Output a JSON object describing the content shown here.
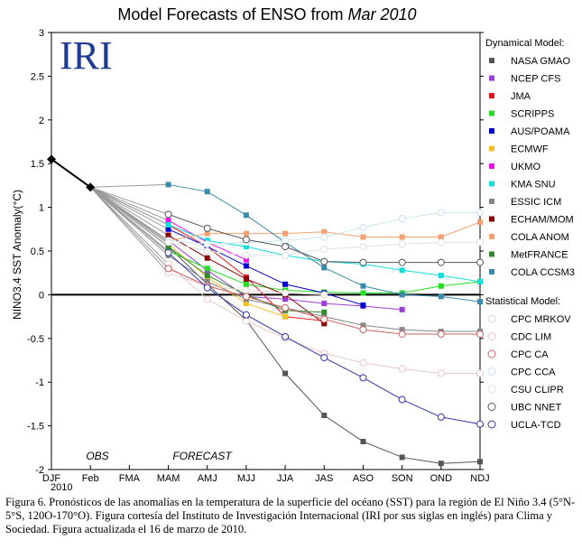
{
  "chart_data": {
    "type": "line",
    "title_prefix": "Model Forecasts of ENSO from",
    "title_month": "Mar 2010",
    "logo": "IRI",
    "ylabel": "NINO3.4 SST Anomaly(°C)",
    "ylim": [
      -2,
      3
    ],
    "yticks": [
      "3",
      "2.5",
      "2",
      "1.5",
      "1",
      "0.5",
      "0",
      "-0.5",
      "-1",
      "-1.5",
      "-2"
    ],
    "categories": [
      "DJF",
      "Feb",
      "FMA",
      "MAM",
      "AMJ",
      "MJJ",
      "JJA",
      "JAS",
      "ASO",
      "SON",
      "OND",
      "NDJ"
    ],
    "x_sub_label": "2010",
    "obs_label": "OBS",
    "forecast_label": "FORECAST",
    "grid": false,
    "legend_placement": "right",
    "observed": {
      "values": [
        1.55,
        1.23
      ]
    },
    "legend_dynamical_header": "Dynamical Model:",
    "legend_statistical_header": "Statistical Model:",
    "series": [
      {
        "name": "NASA GMAO",
        "group": "dynamical",
        "color": "#555555",
        "marker": "square",
        "values": [
          null,
          1.23,
          null,
          0.55,
          0.12,
          -0.29,
          -0.9,
          -1.38,
          -1.68,
          -1.86,
          -1.93,
          -1.91
        ]
      },
      {
        "name": "NCEP CFS",
        "group": "dynamical",
        "color": "#9b3fd8",
        "marker": "square",
        "values": [
          null,
          1.23,
          null,
          0.62,
          0.28,
          -0.02,
          -0.05,
          -0.1,
          -0.13,
          -0.17,
          null,
          null
        ]
      },
      {
        "name": "JMA",
        "group": "dynamical",
        "color": "#e8141e",
        "marker": "square",
        "values": [
          null,
          1.23,
          null,
          0.8,
          0.55,
          0.2,
          -0.25,
          -0.3,
          null,
          null,
          null,
          null
        ]
      },
      {
        "name": "SCRIPPS",
        "group": "dynamical",
        "color": "#22dd22",
        "marker": "square",
        "values": [
          null,
          1.23,
          null,
          0.5,
          0.3,
          0.12,
          0.05,
          0.03,
          0.02,
          0.02,
          0.1,
          0.15
        ]
      },
      {
        "name": "AUS/POAMA",
        "group": "dynamical",
        "color": "#0000cc",
        "marker": "square",
        "values": [
          null,
          1.23,
          null,
          0.75,
          0.55,
          0.33,
          0.12,
          0.02,
          -0.12,
          null,
          null,
          null
        ]
      },
      {
        "name": "ECMWF",
        "group": "dynamical",
        "color": "#f6c02a",
        "marker": "square",
        "values": [
          null,
          1.23,
          null,
          0.58,
          0.2,
          -0.1,
          -0.25,
          null,
          null,
          null,
          null,
          null
        ]
      },
      {
        "name": "UKMO",
        "group": "dynamical",
        "color": "#ee11ee",
        "marker": "square",
        "values": [
          null,
          1.23,
          null,
          0.85,
          0.6,
          0.4,
          null,
          null,
          null,
          null,
          null,
          null
        ]
      },
      {
        "name": "KMA SNU",
        "group": "dynamical",
        "color": "#11dddd",
        "marker": "square",
        "values": [
          null,
          1.23,
          null,
          0.8,
          0.62,
          0.55,
          0.45,
          0.38,
          0.35,
          0.28,
          0.22,
          0.15
        ]
      },
      {
        "name": "ESSIC ICM",
        "group": "dynamical",
        "color": "#888888",
        "marker": "square",
        "values": [
          null,
          1.23,
          null,
          0.45,
          0.15,
          -0.05,
          -0.15,
          -0.25,
          -0.35,
          -0.4,
          -0.42,
          -0.42
        ]
      },
      {
        "name": "ECHAM/MOM",
        "group": "dynamical",
        "color": "#880000",
        "marker": "square",
        "values": [
          null,
          1.23,
          null,
          0.68,
          0.42,
          0.18,
          0.0,
          -0.33,
          null,
          null,
          null,
          null
        ]
      },
      {
        "name": "COLA ANOM",
        "group": "dynamical",
        "color": "#f4a070",
        "marker": "square",
        "values": [
          null,
          1.23,
          null,
          0.62,
          0.7,
          0.7,
          0.7,
          0.72,
          0.66,
          0.66,
          0.66,
          0.83
        ]
      },
      {
        "name": "MetFRANCE",
        "group": "dynamical",
        "color": "#338833",
        "marker": "square",
        "values": [
          null,
          1.23,
          null,
          0.55,
          0.22,
          0.0,
          -0.18,
          -0.2,
          null,
          null,
          null,
          null
        ]
      },
      {
        "name": "COLA CCSM3",
        "group": "dynamical",
        "color": "#3a8aaa",
        "marker": "square",
        "values": [
          null,
          1.23,
          null,
          1.26,
          1.18,
          0.91,
          0.6,
          0.31,
          0.1,
          0.0,
          -0.02,
          -0.08
        ]
      },
      {
        "name": "CPC MRKOV",
        "group": "statistical",
        "color": "#e8d0d0",
        "marker": "circle",
        "values": [
          null,
          1.23,
          null,
          0.25,
          0.1,
          0.05,
          0.02,
          0.0,
          null,
          null,
          null,
          null
        ]
      },
      {
        "name": "CDC LIM",
        "group": "statistical",
        "color": "#e8c8c8",
        "marker": "circle",
        "values": [
          null,
          1.23,
          null,
          0.35,
          -0.05,
          -0.3,
          -0.5,
          -0.67,
          -0.78,
          -0.85,
          -0.9,
          -0.9
        ]
      },
      {
        "name": "CPC CA",
        "group": "statistical",
        "color": "#d06060",
        "marker": "circle",
        "values": [
          null,
          1.23,
          null,
          0.3,
          0.1,
          -0.02,
          -0.15,
          -0.28,
          -0.4,
          -0.45,
          -0.45,
          -0.45
        ]
      },
      {
        "name": "CPC CCA",
        "group": "statistical",
        "color": "#c8e4f0",
        "marker": "circle",
        "values": [
          null,
          1.23,
          null,
          0.62,
          0.58,
          0.6,
          0.62,
          0.66,
          0.77,
          0.87,
          0.94,
          0.94
        ]
      },
      {
        "name": "CSU CLIPR",
        "group": "statistical",
        "color": "#e0e0e0",
        "marker": "circle",
        "values": [
          null,
          1.23,
          null,
          0.6,
          0.5,
          0.45,
          0.45,
          0.52,
          0.55,
          0.58,
          0.6,
          0.6
        ]
      },
      {
        "name": "UBC NNET",
        "group": "statistical",
        "color": "#555555",
        "marker": "circle",
        "values": [
          null,
          1.23,
          null,
          0.92,
          0.76,
          0.63,
          0.55,
          0.38,
          0.37,
          0.37,
          0.37,
          0.37
        ]
      },
      {
        "name": "UCLA-TCD",
        "group": "statistical",
        "color": "#3333aa",
        "marker": "circle",
        "values": [
          null,
          1.23,
          null,
          0.48,
          0.08,
          -0.23,
          -0.48,
          -0.72,
          -0.95,
          -1.2,
          -1.4,
          -1.48
        ]
      }
    ]
  },
  "caption": "Figura 6.  Pronósticos de las anomalías en la temperatura de la superficie del océano (SST) para la región de El Niño 3.4 (5°N-5°S, 120O-170°O). Figura cortesía del Instituto de Investigación Internacional (IRI por sus siglas en inglés) para Clima y Sociedad. Figura actualizada el 16 de marzo de 2010."
}
